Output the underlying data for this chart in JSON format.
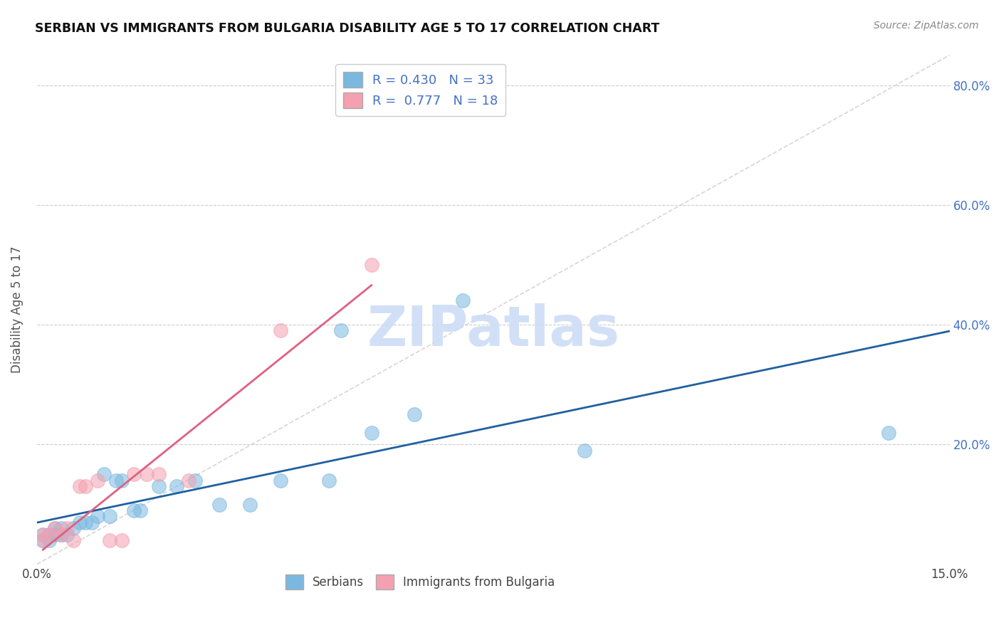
{
  "title": "SERBIAN VS IMMIGRANTS FROM BULGARIA DISABILITY AGE 5 TO 17 CORRELATION CHART",
  "source": "Source: ZipAtlas.com",
  "xlabel": "",
  "ylabel": "Disability Age 5 to 17",
  "xlim": [
    0.0,
    0.15
  ],
  "ylim": [
    0.0,
    0.85
  ],
  "xtick_positions": [
    0.0,
    0.03,
    0.06,
    0.09,
    0.12,
    0.15
  ],
  "xticklabels": [
    "0.0%",
    "",
    "",
    "",
    "",
    "15.0%"
  ],
  "ytick_positions": [
    0.0,
    0.2,
    0.4,
    0.6,
    0.8
  ],
  "ytick_right_labels": [
    "",
    "20.0%",
    "40.0%",
    "60.0%",
    "80.0%"
  ],
  "serbian_color": "#7ab8e0",
  "bulgarian_color": "#f4a0b0",
  "regression_serbian_color": "#2060a0",
  "regression_bulgarian_color": "#e06080",
  "legend_serbian_label": "R = 0.430   N = 33",
  "legend_bulgarian_label": "R =  0.777   N = 18",
  "series_serbian": [
    [
      0.001,
      0.04
    ],
    [
      0.001,
      0.05
    ],
    [
      0.002,
      0.04
    ],
    [
      0.002,
      0.05
    ],
    [
      0.003,
      0.05
    ],
    [
      0.003,
      0.06
    ],
    [
      0.004,
      0.05
    ],
    [
      0.004,
      0.06
    ],
    [
      0.005,
      0.05
    ],
    [
      0.006,
      0.06
    ],
    [
      0.007,
      0.07
    ],
    [
      0.008,
      0.07
    ],
    [
      0.009,
      0.07
    ],
    [
      0.01,
      0.08
    ],
    [
      0.011,
      0.15
    ],
    [
      0.012,
      0.08
    ],
    [
      0.013,
      0.14
    ],
    [
      0.014,
      0.14
    ],
    [
      0.016,
      0.09
    ],
    [
      0.017,
      0.09
    ],
    [
      0.02,
      0.13
    ],
    [
      0.023,
      0.13
    ],
    [
      0.026,
      0.14
    ],
    [
      0.03,
      0.1
    ],
    [
      0.035,
      0.1
    ],
    [
      0.04,
      0.14
    ],
    [
      0.048,
      0.14
    ],
    [
      0.05,
      0.39
    ],
    [
      0.055,
      0.22
    ],
    [
      0.062,
      0.25
    ],
    [
      0.07,
      0.44
    ],
    [
      0.09,
      0.19
    ],
    [
      0.14,
      0.22
    ]
  ],
  "series_bulgarian": [
    [
      0.001,
      0.04
    ],
    [
      0.001,
      0.05
    ],
    [
      0.002,
      0.05
    ],
    [
      0.003,
      0.06
    ],
    [
      0.004,
      0.05
    ],
    [
      0.005,
      0.06
    ],
    [
      0.006,
      0.04
    ],
    [
      0.007,
      0.13
    ],
    [
      0.008,
      0.13
    ],
    [
      0.01,
      0.14
    ],
    [
      0.012,
      0.04
    ],
    [
      0.014,
      0.04
    ],
    [
      0.016,
      0.15
    ],
    [
      0.018,
      0.15
    ],
    [
      0.02,
      0.15
    ],
    [
      0.025,
      0.14
    ],
    [
      0.04,
      0.39
    ],
    [
      0.055,
      0.5
    ]
  ],
  "watermark_text": "ZIPatlas",
  "watermark_color": "#ccddf5",
  "background_color": "#ffffff",
  "grid_color": "#cccccc",
  "ref_line_color": "#cccccc"
}
